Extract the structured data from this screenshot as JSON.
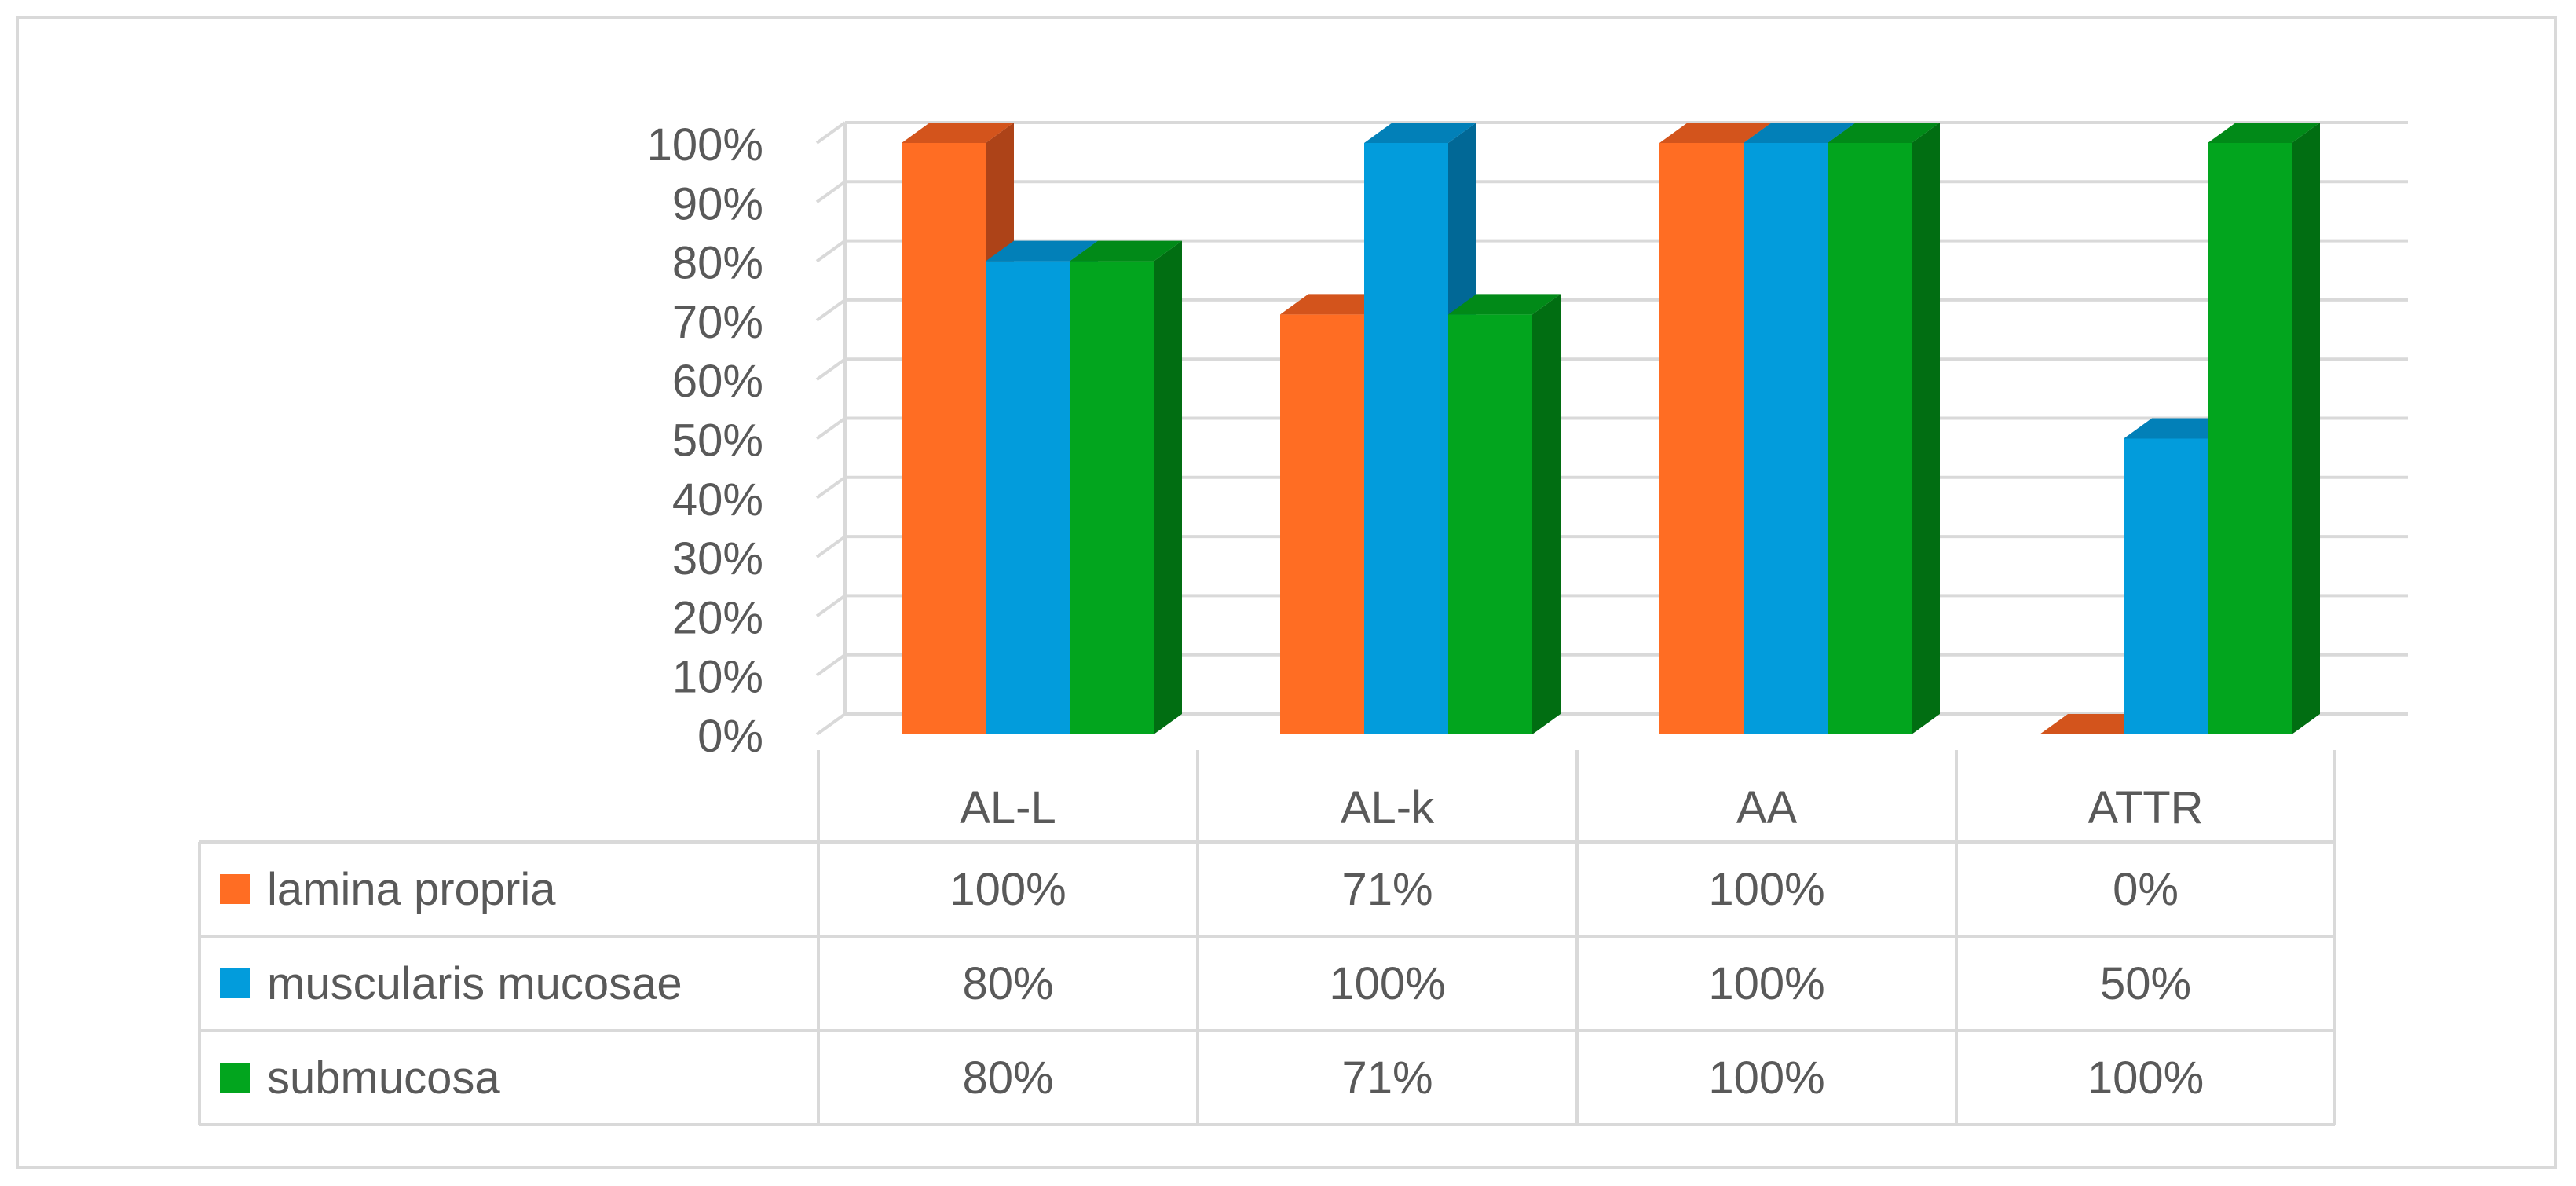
{
  "chart_data": {
    "type": "bar",
    "categories": [
      "AL-L",
      "AL-k",
      "AA",
      "ATTR"
    ],
    "series": [
      {
        "name": "lamina propria",
        "values": [
          100,
          71,
          100,
          0
        ],
        "labels": [
          "100%",
          "71%",
          "100%",
          "0%"
        ],
        "color": "#ff6d23",
        "top_color": "#d3541c",
        "side_color": "#ad4318"
      },
      {
        "name": "muscularis mucosae",
        "values": [
          80,
          100,
          100,
          50
        ],
        "labels": [
          "80%",
          "100%",
          "100%",
          "50%"
        ],
        "color": "#029cdc",
        "top_color": "#0280b8",
        "side_color": "#016896"
      },
      {
        "name": "submucosa",
        "values": [
          80,
          71,
          100,
          100
        ],
        "labels": [
          "80%",
          "71%",
          "100%",
          "100%"
        ],
        "color": "#02a51e",
        "top_color": "#018a18",
        "side_color": "#016e12"
      }
    ],
    "ylim": [
      0,
      100
    ],
    "y_ticks": [
      "0%",
      "10%",
      "20%",
      "30%",
      "40%",
      "50%",
      "60%",
      "70%",
      "80%",
      "90%",
      "100%"
    ],
    "grid": true,
    "legend": "data table",
    "data_table": true
  }
}
